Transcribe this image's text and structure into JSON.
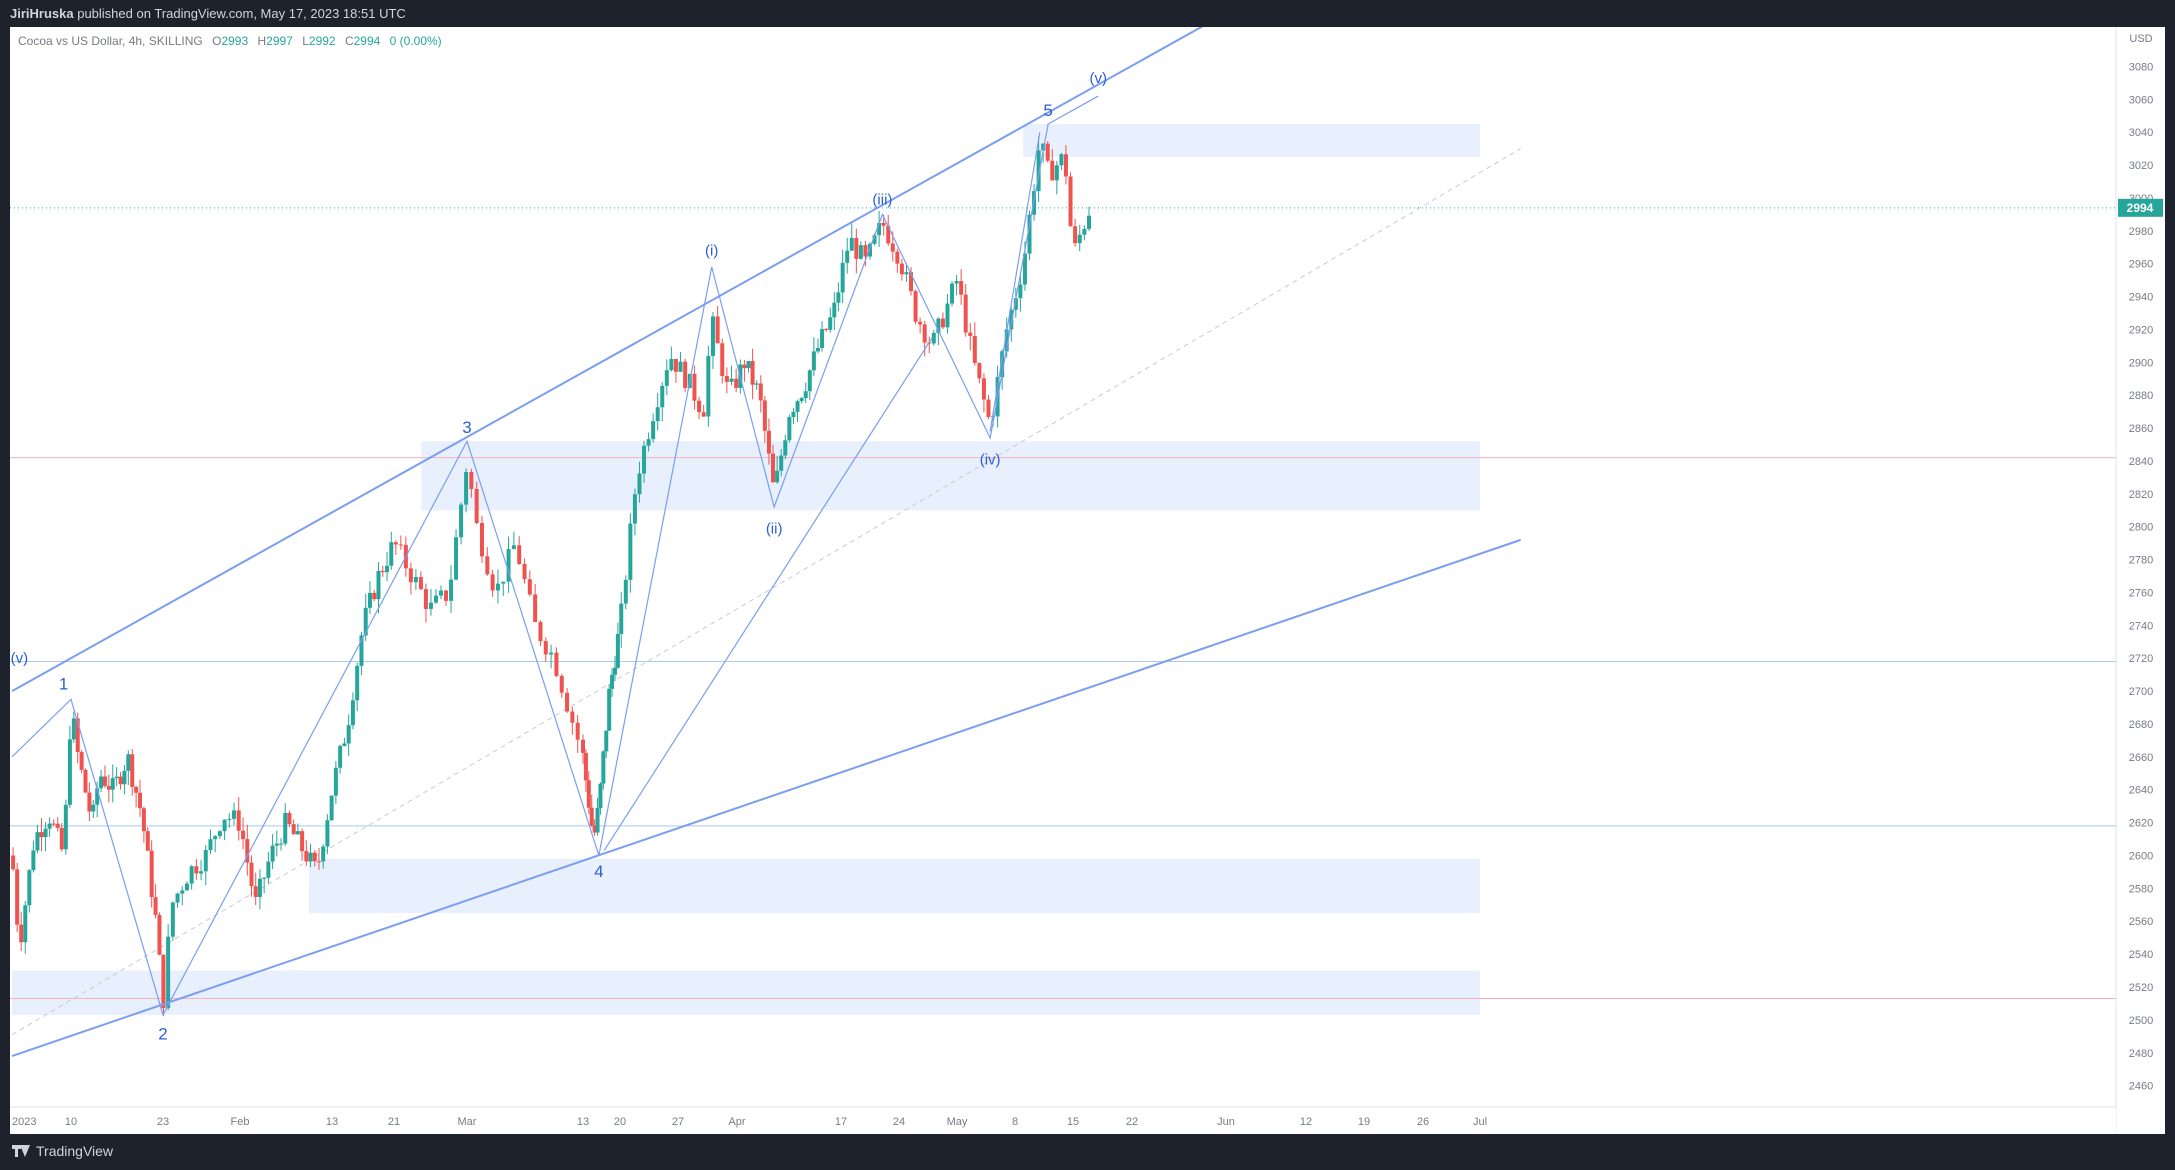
{
  "header": {
    "author": "JiriHruska",
    "published_text": "published on TradingView.com, May 17, 2023 18:51 UTC"
  },
  "legend": {
    "symbol": "Cocoa vs US Dollar, 4h, SKILLING",
    "o_label": "O",
    "o_value": "2993",
    "h_label": "H",
    "h_value": "2997",
    "l_label": "L",
    "l_value": "2992",
    "c_label": "C",
    "c_value": "2994",
    "change": "0 (0.00%)"
  },
  "footer": {
    "brand": "TradingView"
  },
  "colors": {
    "up": "#26a69a",
    "down": "#ef5350",
    "trend": "#7b9ef0",
    "zone": "#e8effd",
    "wave_label": "#2a5fd6",
    "last_price_bg": "#26a69a"
  },
  "chart_data": {
    "type": "candlestick",
    "title": "Cocoa vs US Dollar, 4h, SKILLING",
    "currency": "USD",
    "ylim": [
      2447,
      3104
    ],
    "y_ticks": [
      2460,
      2480,
      2500,
      2520,
      2540,
      2560,
      2580,
      2600,
      2620,
      2640,
      2660,
      2680,
      2700,
      2720,
      2740,
      2760,
      2780,
      2800,
      2820,
      2840,
      2860,
      2880,
      2900,
      2920,
      2940,
      2960,
      2980,
      3000,
      3020,
      3040,
      3060,
      3080
    ],
    "x_ticks": [
      {
        "label": "2023",
        "date": "2023-01-02"
      },
      {
        "label": "10",
        "date": "2023-01-10"
      },
      {
        "label": "23",
        "date": "2023-01-23"
      },
      {
        "label": "Feb",
        "date": "2023-02-01"
      },
      {
        "label": "13",
        "date": "2023-02-13"
      },
      {
        "label": "21",
        "date": "2023-02-21"
      },
      {
        "label": "Mar",
        "date": "2023-03-01"
      },
      {
        "label": "13",
        "date": "2023-03-13"
      },
      {
        "label": "20",
        "date": "2023-03-20"
      },
      {
        "label": "27",
        "date": "2023-03-27"
      },
      {
        "label": "Apr",
        "date": "2023-04-03"
      },
      {
        "label": "17",
        "date": "2023-04-17"
      },
      {
        "label": "24",
        "date": "2023-04-24"
      },
      {
        "label": "May",
        "date": "2023-05-01"
      },
      {
        "label": "8",
        "date": "2023-05-08"
      },
      {
        "label": "15",
        "date": "2023-05-15"
      },
      {
        "label": "22",
        "date": "2023-05-22"
      },
      {
        "label": "Jun",
        "date": "2023-06-01"
      },
      {
        "label": "12",
        "date": "2023-06-12"
      },
      {
        "label": "19",
        "date": "2023-06-19"
      },
      {
        "label": "26",
        "date": "2023-06-26"
      },
      {
        "label": "Jul",
        "date": "2023-07-03"
      }
    ],
    "last_price": 2994,
    "price_path": [
      [
        "2023-01-02",
        2600
      ],
      [
        "2023-01-03",
        2545
      ],
      [
        "2023-01-05",
        2610
      ],
      [
        "2023-01-07",
        2625
      ],
      [
        "2023-01-09",
        2600
      ],
      [
        "2023-01-10",
        2690
      ],
      [
        "2023-01-11",
        2660
      ],
      [
        "2023-01-13",
        2620
      ],
      [
        "2023-01-14",
        2650
      ],
      [
        "2023-01-16",
        2640
      ],
      [
        "2023-01-18",
        2660
      ],
      [
        "2023-01-20",
        2625
      ],
      [
        "2023-01-22",
        2560
      ],
      [
        "2023-01-23",
        2510
      ],
      [
        "2023-01-24",
        2570
      ],
      [
        "2023-01-26",
        2590
      ],
      [
        "2023-01-28",
        2600
      ],
      [
        "2023-01-30",
        2625
      ],
      [
        "2023-02-01",
        2620
      ],
      [
        "2023-02-03",
        2570
      ],
      [
        "2023-02-05",
        2600
      ],
      [
        "2023-02-07",
        2620
      ],
      [
        "2023-02-09",
        2605
      ],
      [
        "2023-02-11",
        2590
      ],
      [
        "2023-02-13",
        2640
      ],
      [
        "2023-02-15",
        2680
      ],
      [
        "2023-02-17",
        2740
      ],
      [
        "2023-02-19",
        2770
      ],
      [
        "2023-02-21",
        2790
      ],
      [
        "2023-02-23",
        2770
      ],
      [
        "2023-02-25",
        2750
      ],
      [
        "2023-02-27",
        2760
      ],
      [
        "2023-03-01",
        2840
      ],
      [
        "2023-03-02",
        2800
      ],
      [
        "2023-03-04",
        2760
      ],
      [
        "2023-03-06",
        2790
      ],
      [
        "2023-03-08",
        2740
      ],
      [
        "2023-03-10",
        2720
      ],
      [
        "2023-03-11",
        2700
      ],
      [
        "2023-03-13",
        2660
      ],
      [
        "2023-03-15",
        2610
      ],
      [
        "2023-03-16",
        2630
      ],
      [
        "2023-03-18",
        2700
      ],
      [
        "2023-03-20",
        2740
      ],
      [
        "2023-03-22",
        2830
      ],
      [
        "2023-03-24",
        2870
      ],
      [
        "2023-03-26",
        2905
      ],
      [
        "2023-03-28",
        2890
      ],
      [
        "2023-03-30",
        2870
      ],
      [
        "2023-03-31",
        2925
      ],
      [
        "2023-04-02",
        2880
      ],
      [
        "2023-04-04",
        2900
      ],
      [
        "2023-04-06",
        2880
      ],
      [
        "2023-04-08",
        2820
      ],
      [
        "2023-04-10",
        2870
      ],
      [
        "2023-04-12",
        2885
      ],
      [
        "2023-04-14",
        2910
      ],
      [
        "2023-04-16",
        2930
      ],
      [
        "2023-04-18",
        2975
      ],
      [
        "2023-04-20",
        2960
      ],
      [
        "2023-04-22",
        2985
      ],
      [
        "2023-04-24",
        2965
      ],
      [
        "2023-04-26",
        2930
      ],
      [
        "2023-04-28",
        2910
      ],
      [
        "2023-05-01",
        2950
      ],
      [
        "2023-05-03",
        2900
      ],
      [
        "2023-05-05",
        2862
      ],
      [
        "2023-05-07",
        2920
      ],
      [
        "2023-05-09",
        2960
      ],
      [
        "2023-05-11",
        3035
      ],
      [
        "2023-05-12",
        3015
      ],
      [
        "2023-05-14",
        3025
      ],
      [
        "2023-05-15",
        2965
      ],
      [
        "2023-05-16",
        2980
      ],
      [
        "2023-05-17",
        2994
      ]
    ],
    "zones": [
      {
        "from": "2023-02-24",
        "to": "2023-07-03",
        "low": 2810,
        "high": 2852
      },
      {
        "from": "2023-05-09",
        "to": "2023-07-03",
        "low": 3025,
        "high": 3045
      },
      {
        "from": "2023-02-10",
        "to": "2023-07-03",
        "low": 2565,
        "high": 2598
      },
      {
        "from": "2023-01-02",
        "to": "2023-07-03",
        "low": 2503,
        "high": 2530
      }
    ],
    "horizontal_lines": [
      {
        "price": 2842,
        "color": "#f4b2b2"
      },
      {
        "price": 2718,
        "color": "#a9c9f0"
      },
      {
        "price": 2618,
        "color": "#a9c9f0"
      },
      {
        "price": 2513,
        "color": "#f4b2b2"
      }
    ],
    "channel": [
      {
        "from": [
          "2023-01-02",
          2700
        ],
        "to": [
          "2023-05-30",
          3106
        ]
      },
      {
        "from": [
          "2023-01-02",
          2478
        ],
        "to": [
          "2023-07-08",
          2792
        ]
      }
    ],
    "mid_line": {
      "from": [
        "2023-01-02",
        2491
      ],
      "to": [
        "2023-07-08",
        3030
      ]
    },
    "wave_path": [
      [
        "2023-01-02",
        2660
      ],
      [
        "2023-01-10",
        2695
      ],
      [
        "2023-01-23",
        2503
      ],
      [
        "2023-03-01",
        2852
      ],
      [
        "2023-03-16",
        2600
      ],
      [
        "2023-03-31",
        2958
      ],
      [
        "2023-04-08",
        2812
      ],
      [
        "2023-04-22",
        2990
      ],
      [
        "2023-05-05",
        2854
      ],
      [
        "2023-05-12",
        3045
      ],
      [
        "2023-05-18",
        3062
      ]
    ],
    "wave_lines": [
      {
        "from": [
          "2023-03-17",
          2603
        ],
        "to": [
          "2023-04-28",
          2915
        ]
      },
      {
        "from": [
          "2023-05-05",
          2858
        ],
        "to": [
          "2023-05-11",
          3040
        ]
      }
    ],
    "waves": [
      {
        "label": "(v)",
        "date": "2023-01-03",
        "price": 2717
      },
      {
        "label": "1",
        "date": "2023-01-09",
        "price": 2701
      },
      {
        "label": "2",
        "date": "2023-01-23",
        "price": 2488
      },
      {
        "label": "3",
        "date": "2023-03-01",
        "price": 2857
      },
      {
        "label": "4",
        "date": "2023-03-16",
        "price": 2587
      },
      {
        "label": "(i)",
        "date": "2023-03-31",
        "price": 2965
      },
      {
        "label": "(ii)",
        "date": "2023-04-08",
        "price": 2796
      },
      {
        "label": "(iii)",
        "date": "2023-04-22",
        "price": 2996
      },
      {
        "label": "(iv)",
        "date": "2023-05-05",
        "price": 2838
      },
      {
        "label": "5",
        "date": "2023-05-12",
        "price": 3050
      },
      {
        "label": "(v)",
        "date": "2023-05-18",
        "price": 3070
      }
    ]
  }
}
